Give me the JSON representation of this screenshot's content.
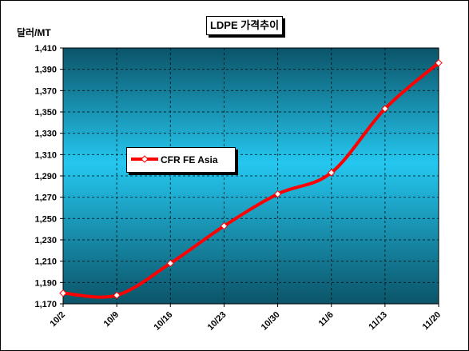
{
  "chart_data": {
    "type": "line",
    "title": "LDPE 가격추이",
    "ylabel": "달러/MT",
    "xlabel": "",
    "categories": [
      "10/2",
      "10/9",
      "10/16",
      "10/23",
      "10/30",
      "11/6",
      "11/13",
      "11/20"
    ],
    "y_ticks": [
      "1,170",
      "1,190",
      "1,210",
      "1,230",
      "1,250",
      "1,270",
      "1,290",
      "1,310",
      "1,330",
      "1,350",
      "1,370",
      "1,390",
      "1,410"
    ],
    "ylim": [
      1170,
      1410
    ],
    "grid": true,
    "legend_position": "left",
    "series": [
      {
        "name": "CFR FE Asia",
        "values": [
          1180,
          1178,
          1208,
          1243,
          1273,
          1293,
          1353,
          1396
        ],
        "color": "#ff0000"
      }
    ],
    "colors": {
      "plot_top": "#0d5a73",
      "plot_mid": "#22bfe8",
      "plot_bottom": "#0d5a73",
      "line": "#ff0000"
    }
  }
}
